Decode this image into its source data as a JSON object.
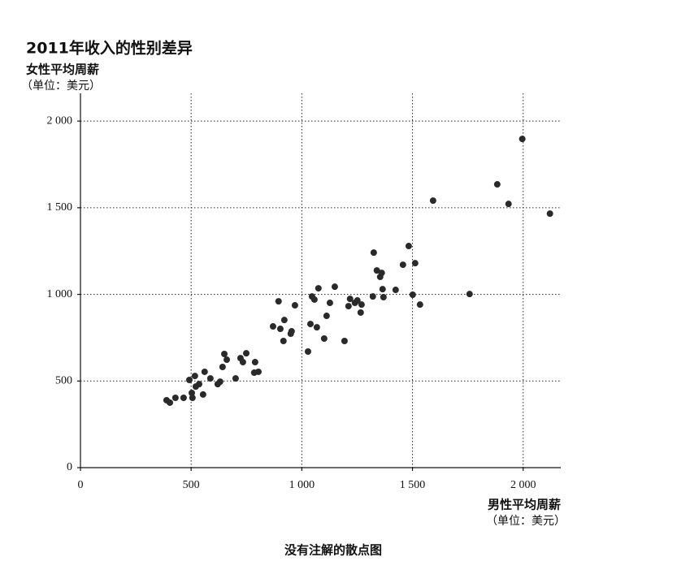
{
  "chart_data": {
    "type": "scatter",
    "title": "2011年收入的性别差异",
    "y_label": "女性平均周薪",
    "y_unit": "（单位：美元）",
    "x_label": "男性平均周薪",
    "x_unit": "（单位：美元）",
    "caption": "没有注解的散点图",
    "color": "#2a2a2a",
    "grid": true,
    "xlim": [
      0,
      2170
    ],
    "ylim": [
      0,
      2160
    ],
    "xticks": [
      0,
      500,
      {
        "value": 1000,
        "label": "1 000"
      },
      {
        "value": 1500,
        "label": "1 500"
      },
      {
        "value": 2000,
        "label": "2 000"
      }
    ],
    "yticks": [
      0,
      500,
      {
        "value": 1000,
        "label": "1 000"
      },
      {
        "value": 1500,
        "label": "1 500"
      },
      {
        "value": 2000,
        "label": "2 000"
      }
    ],
    "x": [
      389,
      404,
      429,
      466,
      492,
      503,
      517,
      521,
      536,
      506,
      554,
      561,
      587,
      620,
      631,
      642,
      650,
      661,
      701,
      723,
      734,
      749,
      789,
      785,
      804,
      870,
      895,
      903,
      917,
      921,
      950,
      954,
      969,
      1028,
      1039,
      1046,
      1057,
      1068,
      1075,
      1101,
      1112,
      1127,
      1149,
      1193,
      1211,
      1218,
      1240,
      1251,
      1266,
      1270,
      1321,
      1325,
      1339,
      1354,
      1361,
      1365,
      1369,
      1424,
      1457,
      1483,
      1501,
      1512,
      1534,
      1593,
      1758,
      1883,
      1934,
      1996,
      2121
    ],
    "values": [
      389,
      375,
      403,
      403,
      506,
      431,
      529,
      468,
      482,
      403,
      422,
      553,
      515,
      482,
      496,
      581,
      656,
      623,
      515,
      632,
      609,
      660,
      609,
      548,
      553,
      815,
      960,
      801,
      731,
      852,
      773,
      787,
      937,
      670,
      829,
      988,
      970,
      810,
      1035,
      745,
      876,
      951,
      1044,
      731,
      932,
      974,
      951,
      965,
      895,
      941,
      988,
      1241,
      1138,
      1101,
      1124,
      1030,
      984,
      1026,
      1171,
      1279,
      998,
      1180,
      941,
      1541,
      1002,
      1635,
      1522,
      1897,
      1466
    ]
  }
}
